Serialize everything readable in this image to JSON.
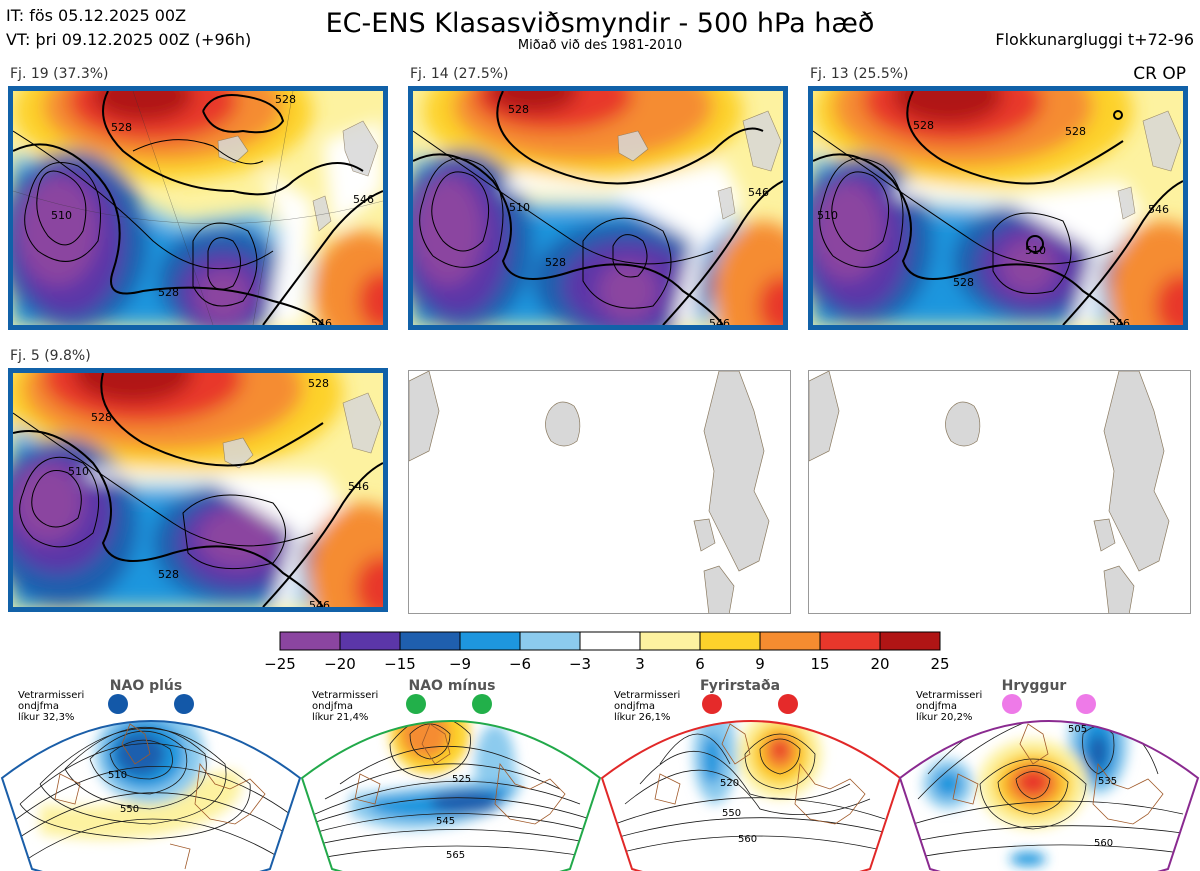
{
  "header": {
    "it": "IT: fös 05.12.2025 00Z",
    "vt": "VT: þri 09.12.2025 00Z  (+96h)",
    "title": "EC-ENS Klasasviðsmyndir - 500 hPa hæð",
    "subtitle": "Miðað við des 1981-2010",
    "window": "Flokkunargluggi t+72-96",
    "cr_op": "CR OP"
  },
  "panels": [
    {
      "label": "Fj. 19 (37.3%)",
      "contours": [
        "528",
        "510",
        "528",
        "546",
        "528",
        "546"
      ]
    },
    {
      "label": "Fj. 14 (27.5%)",
      "contours": [
        "528",
        "510",
        "528",
        "546",
        "546"
      ]
    },
    {
      "label": "Fj. 13 (25.5%)",
      "contours": [
        "528",
        "528",
        "510",
        "528",
        "546",
        "510",
        "546"
      ]
    },
    {
      "label": "Fj. 5 (9.8%)",
      "contours": [
        "528",
        "510",
        "528",
        "546",
        "528",
        "546"
      ]
    }
  ],
  "colorbar": {
    "ticks": [
      "−25",
      "−20",
      "−15",
      "−9",
      "−6",
      "−3",
      "3",
      "6",
      "9",
      "15",
      "20",
      "25"
    ],
    "colors": [
      "#8b45a0",
      "#5b36a8",
      "#1f5fae",
      "#1e96de",
      "#8ccbee",
      "#ffffff",
      "#fdf2a0",
      "#fdd22b",
      "#f58c30",
      "#e8372b",
      "#b01515"
    ]
  },
  "regimes": [
    {
      "name": "NAO plús",
      "note": [
        "Vetrarmisseri",
        "ondjfma",
        "líkur 32,3%"
      ],
      "color": "#1a5ea8",
      "dot": "#1358a8",
      "contours": [
        "510",
        "550"
      ]
    },
    {
      "name": "NAO mínus",
      "note": [
        "Vetrarmisseri",
        "ondjfma",
        "líkur 21,4%"
      ],
      "color": "#22a94a",
      "dot": "#22b04a",
      "contours": [
        "525",
        "545",
        "565"
      ]
    },
    {
      "name": "Fyrirstaða",
      "note": [
        "Vetrarmisseri",
        "ondjfma",
        "líkur 26,1%"
      ],
      "color": "#e12828",
      "dot": "#e52a2a",
      "contours": [
        "520",
        "550",
        "560"
      ]
    },
    {
      "name": "Hryggur",
      "note": [
        "Vetrarmisseri",
        "ondjfma",
        "líkur 20,2%"
      ],
      "color": "#8a2a90",
      "dot": "#ee7ae8",
      "contours": [
        "505",
        "535",
        "560"
      ]
    }
  ]
}
